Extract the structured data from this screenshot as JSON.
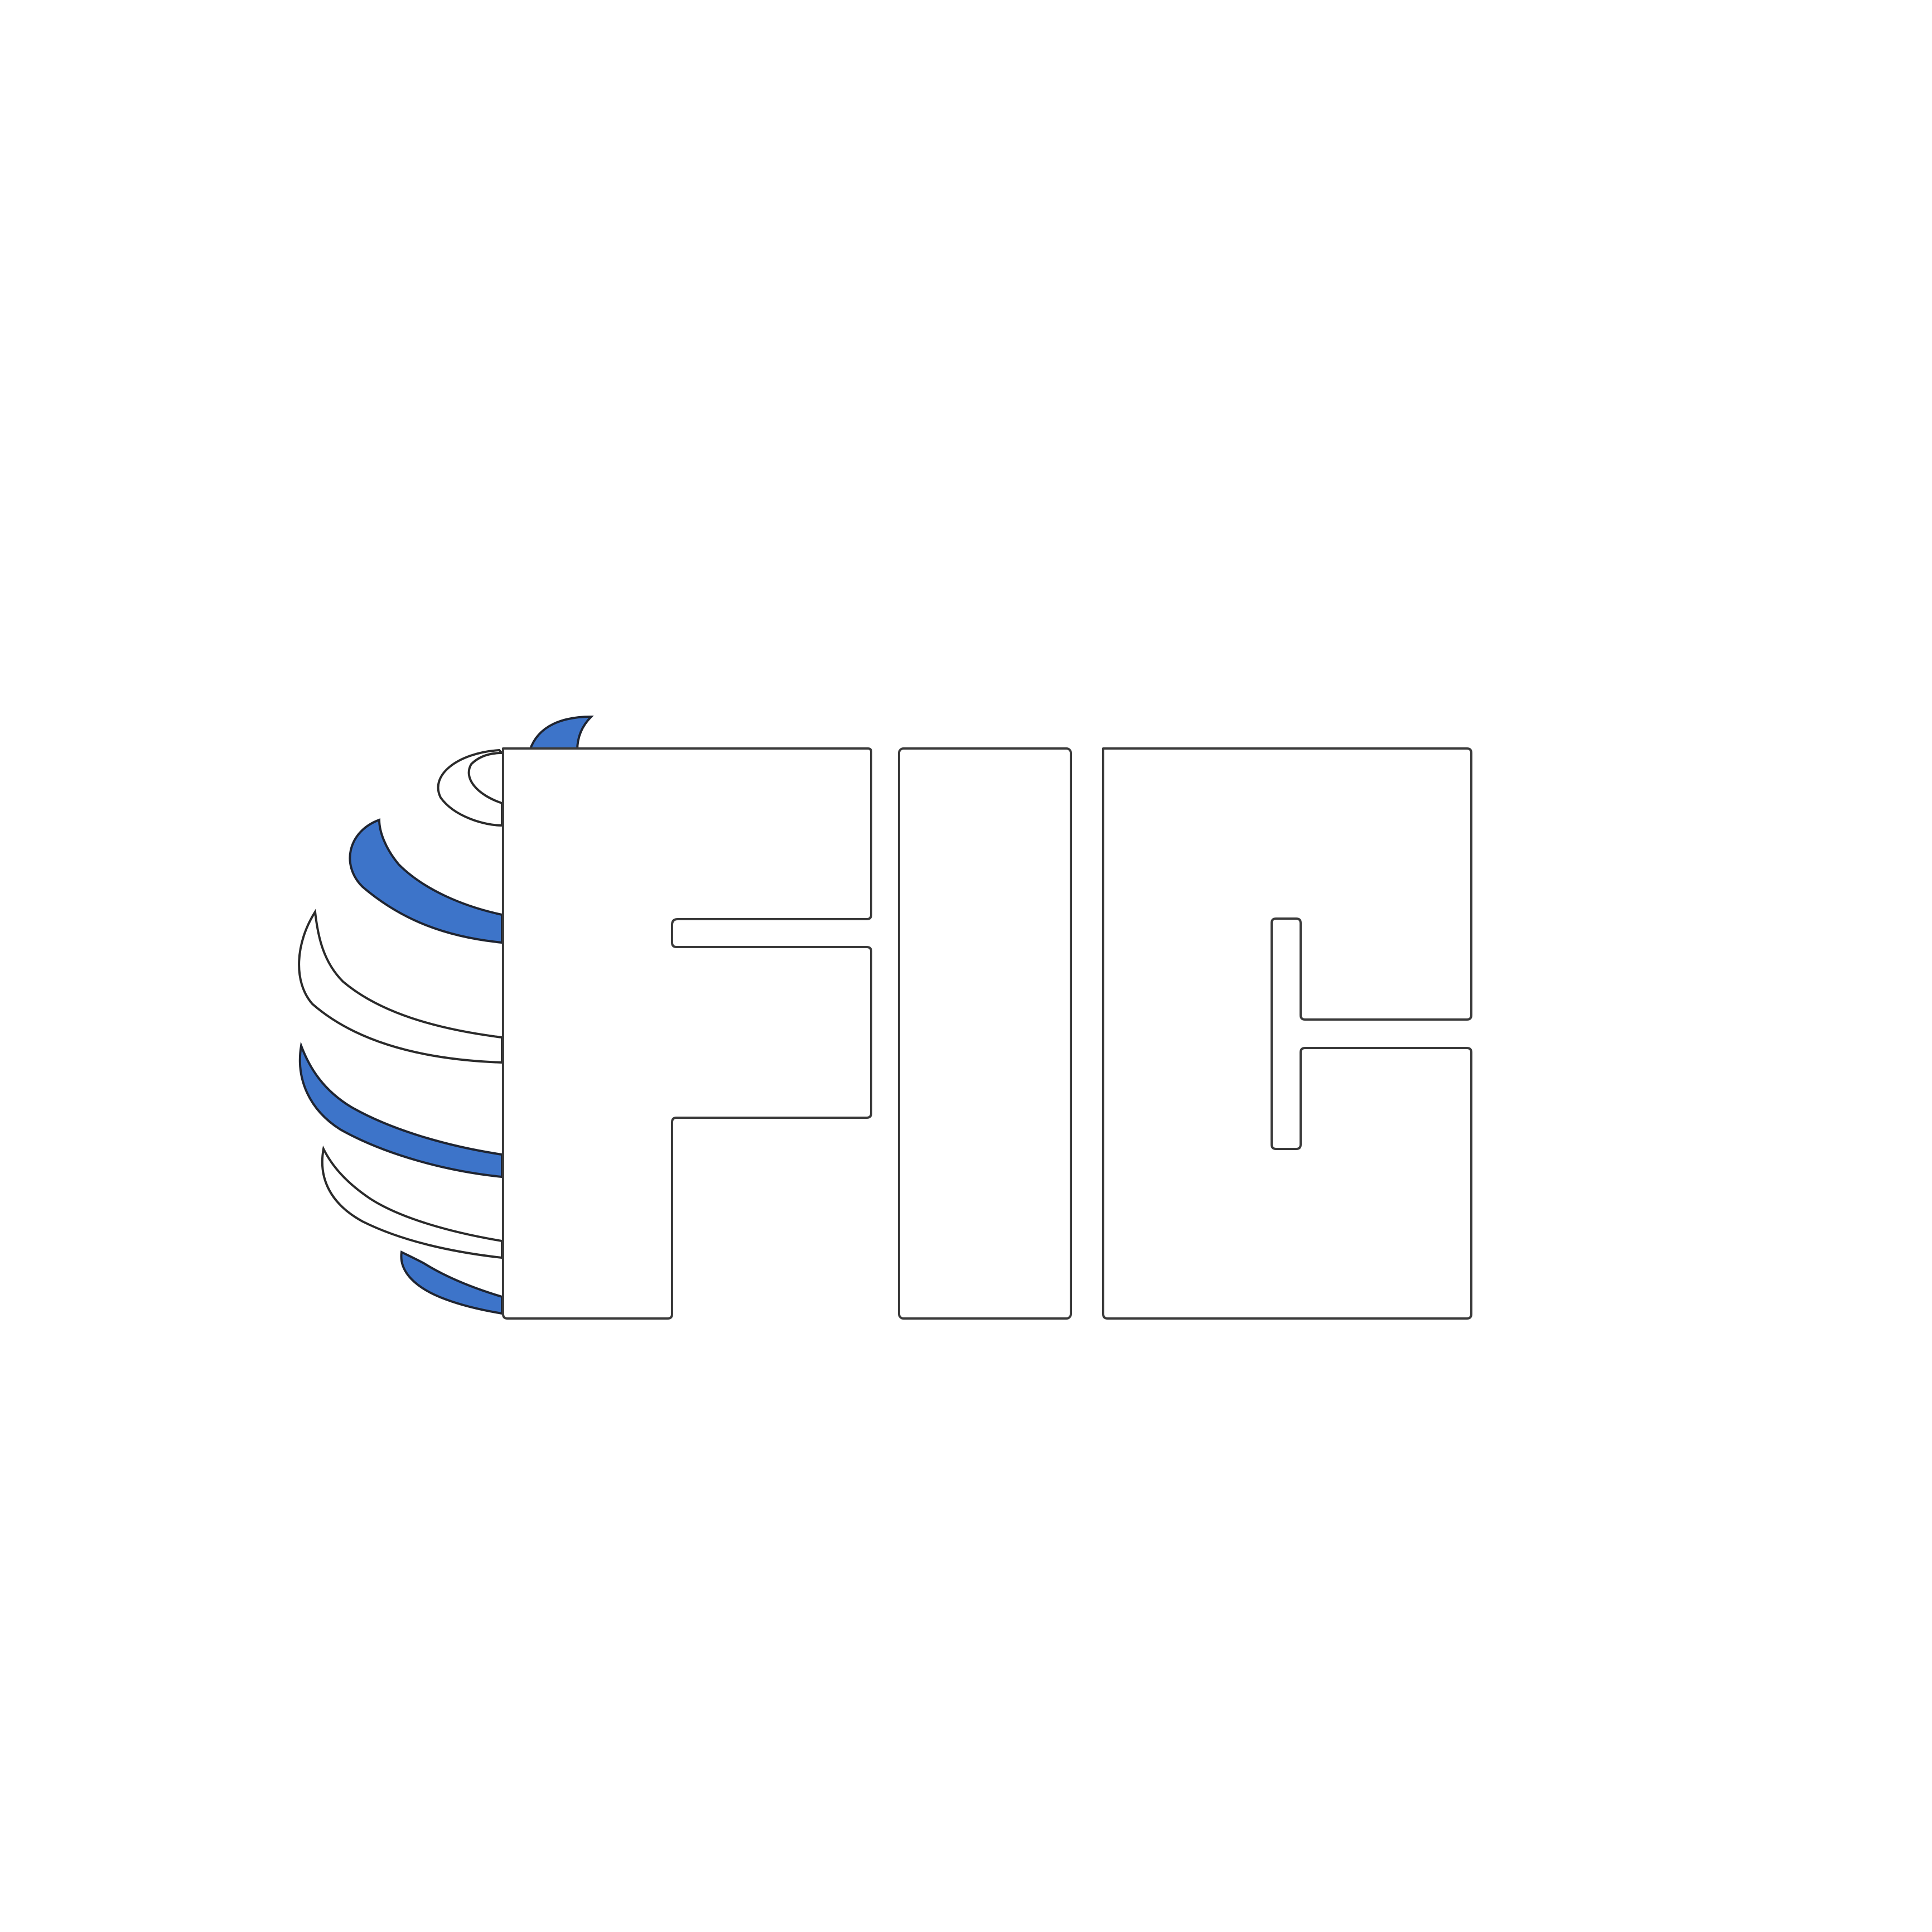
{
  "logo": {
    "text": "FIC",
    "accent_color": "#3d74c9",
    "letter_fill": "#ffffff",
    "outline_color": "#3a3a3a",
    "background": "#ffffff",
    "icon": "globe-stripes-icon"
  }
}
